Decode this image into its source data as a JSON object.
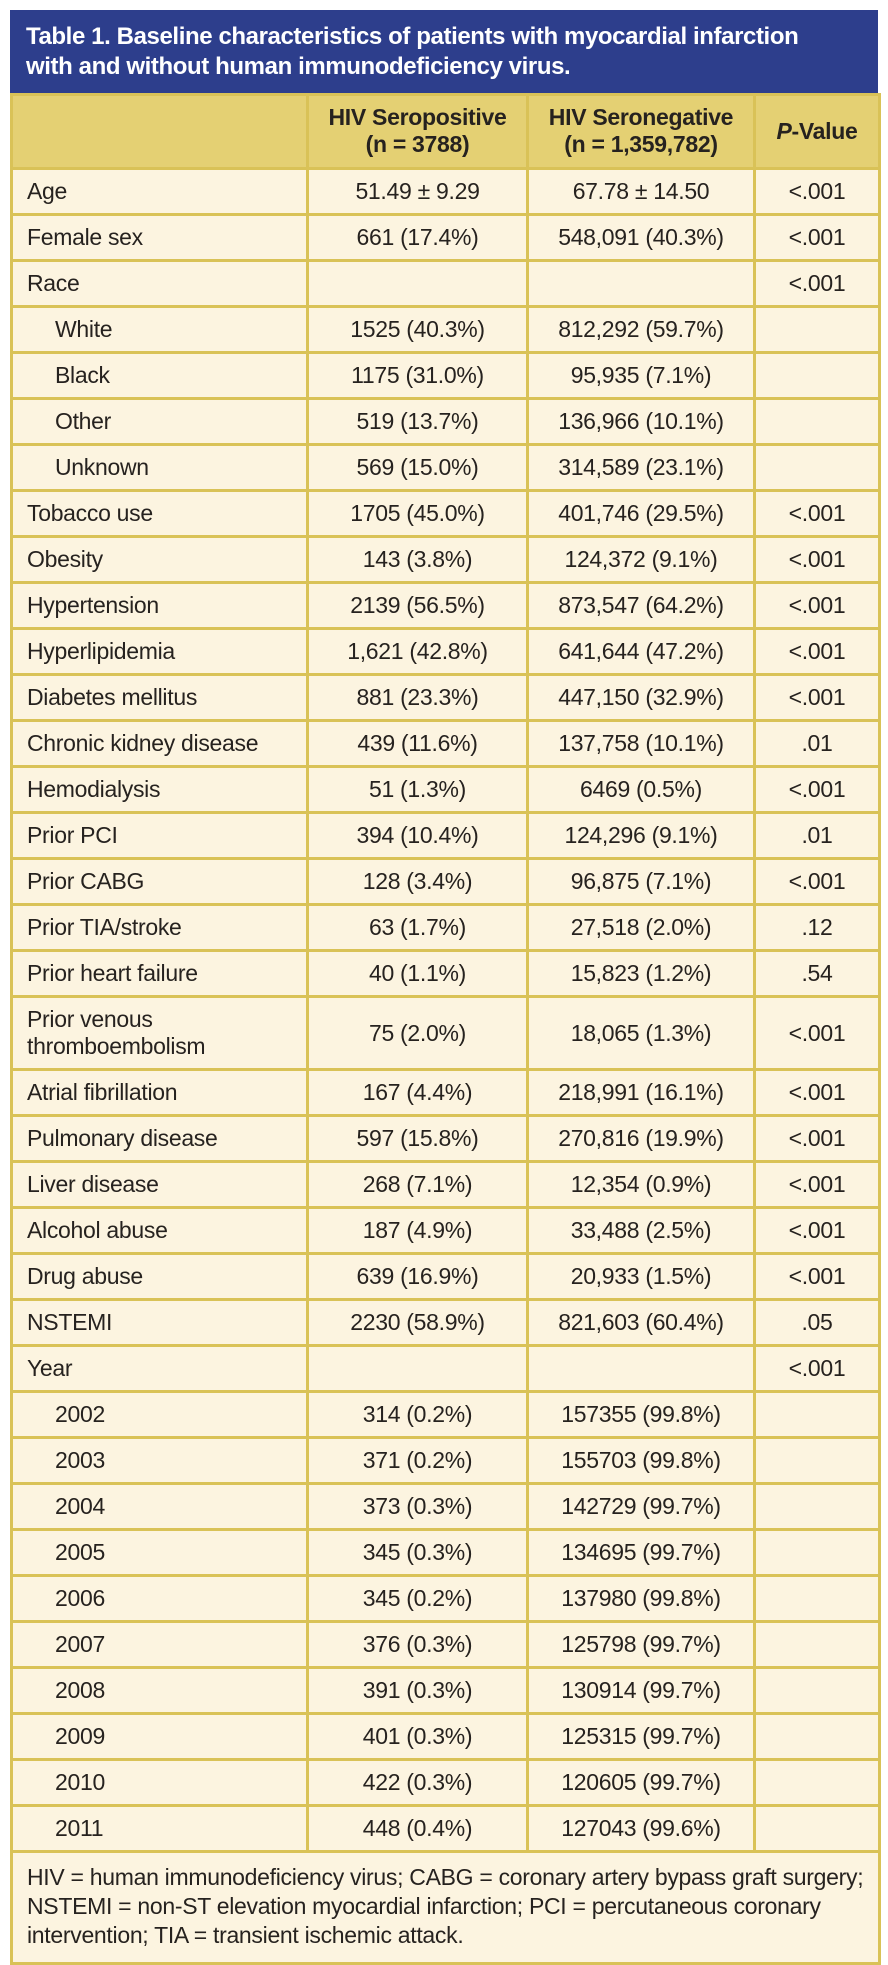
{
  "page": {
    "title_line1": "Table 1. Baseline characteristics of patients with myocardial infarction",
    "title_line2": "with and without human immunodeficiency virus."
  },
  "colors": {
    "title_bar_bg": "#2d3e8c",
    "title_text": "#ffffff",
    "header_band_bg": "#e4d073",
    "cell_bg": "#fcf4e0",
    "border": "#d9c257",
    "body_text": "#26221f"
  },
  "table": {
    "columns": {
      "label_header": "",
      "seropositive": {
        "label": "HIV Seropositive",
        "sub": "(n = 3788)"
      },
      "seronegative": {
        "label": "HIV Seronegative",
        "sub": "(n = 1,359,782)"
      },
      "pvalue": {
        "italic": "P",
        "rest": "-Value"
      }
    },
    "rows": [
      {
        "label": "Age",
        "indent": false,
        "seropositive": "51.49 ± 9.29",
        "seronegative": "67.78 ± 14.50",
        "p": "<.001"
      },
      {
        "label": "Female sex",
        "indent": false,
        "seropositive": "661 (17.4%)",
        "seronegative": "548,091 (40.3%)",
        "p": "<.001"
      },
      {
        "label": "Race",
        "indent": false,
        "seropositive": "",
        "seronegative": "",
        "p": "<.001"
      },
      {
        "label": "White",
        "indent": true,
        "seropositive": "1525 (40.3%)",
        "seronegative": "812,292 (59.7%)",
        "p": ""
      },
      {
        "label": "Black",
        "indent": true,
        "seropositive": "1175 (31.0%)",
        "seronegative": "95,935 (7.1%)",
        "p": ""
      },
      {
        "label": "Other",
        "indent": true,
        "seropositive": "519 (13.7%)",
        "seronegative": "136,966 (10.1%)",
        "p": ""
      },
      {
        "label": "Unknown",
        "indent": true,
        "seropositive": "569 (15.0%)",
        "seronegative": "314,589 (23.1%)",
        "p": ""
      },
      {
        "label": "Tobacco use",
        "indent": false,
        "seropositive": "1705 (45.0%)",
        "seronegative": "401,746 (29.5%)",
        "p": "<.001"
      },
      {
        "label": "Obesity",
        "indent": false,
        "seropositive": "143 (3.8%)",
        "seronegative": "124,372 (9.1%)",
        "p": "<.001"
      },
      {
        "label": "Hypertension",
        "indent": false,
        "seropositive": "2139 (56.5%)",
        "seronegative": "873,547 (64.2%)",
        "p": "<.001"
      },
      {
        "label": "Hyperlipidemia",
        "indent": false,
        "seropositive": "1,621 (42.8%)",
        "seronegative": "641,644 (47.2%)",
        "p": "<.001"
      },
      {
        "label": "Diabetes mellitus",
        "indent": false,
        "seropositive": "881 (23.3%)",
        "seronegative": "447,150 (32.9%)",
        "p": "<.001"
      },
      {
        "label": "Chronic kidney disease",
        "indent": false,
        "seropositive": "439 (11.6%)",
        "seronegative": "137,758 (10.1%)",
        "p": ".01"
      },
      {
        "label": "Hemodialysis",
        "indent": false,
        "seropositive": "51 (1.3%)",
        "seronegative": "6469 (0.5%)",
        "p": "<.001"
      },
      {
        "label": "Prior PCI",
        "indent": false,
        "seropositive": "394 (10.4%)",
        "seronegative": "124,296 (9.1%)",
        "p": ".01"
      },
      {
        "label": "Prior CABG",
        "indent": false,
        "seropositive": "128 (3.4%)",
        "seronegative": "96,875 (7.1%)",
        "p": "<.001"
      },
      {
        "label": "Prior TIA/stroke",
        "indent": false,
        "seropositive": "63 (1.7%)",
        "seronegative": "27,518 (2.0%)",
        "p": ".12"
      },
      {
        "label": "Prior heart failure",
        "indent": false,
        "seropositive": "40 (1.1%)",
        "seronegative": "15,823 (1.2%)",
        "p": ".54"
      },
      {
        "label": "Prior venous thromboembolism",
        "indent": false,
        "seropositive": "75 (2.0%)",
        "seronegative": "18,065 (1.3%)",
        "p": "<.001"
      },
      {
        "label": "Atrial fibrillation",
        "indent": false,
        "seropositive": "167 (4.4%)",
        "seronegative": "218,991 (16.1%)",
        "p": "<.001"
      },
      {
        "label": "Pulmonary disease",
        "indent": false,
        "seropositive": "597 (15.8%)",
        "seronegative": "270,816 (19.9%)",
        "p": "<.001"
      },
      {
        "label": "Liver disease",
        "indent": false,
        "seropositive": "268 (7.1%)",
        "seronegative": "12,354 (0.9%)",
        "p": "<.001"
      },
      {
        "label": "Alcohol abuse",
        "indent": false,
        "seropositive": "187 (4.9%)",
        "seronegative": "33,488 (2.5%)",
        "p": "<.001"
      },
      {
        "label": "Drug abuse",
        "indent": false,
        "seropositive": "639 (16.9%)",
        "seronegative": "20,933 (1.5%)",
        "p": "<.001"
      },
      {
        "label": "NSTEMI",
        "indent": false,
        "seropositive": "2230 (58.9%)",
        "seronegative": "821,603 (60.4%)",
        "p": ".05"
      },
      {
        "label": "Year",
        "indent": false,
        "seropositive": "",
        "seronegative": "",
        "p": "<.001"
      },
      {
        "label": "2002",
        "indent": true,
        "seropositive": "314 (0.2%)",
        "seronegative": "157355 (99.8%)",
        "p": ""
      },
      {
        "label": "2003",
        "indent": true,
        "seropositive": "371 (0.2%)",
        "seronegative": "155703 (99.8%)",
        "p": ""
      },
      {
        "label": "2004",
        "indent": true,
        "seropositive": "373 (0.3%)",
        "seronegative": "142729 (99.7%)",
        "p": ""
      },
      {
        "label": "2005",
        "indent": true,
        "seropositive": "345 (0.3%)",
        "seronegative": "134695 (99.7%)",
        "p": ""
      },
      {
        "label": "2006",
        "indent": true,
        "seropositive": "345 (0.2%)",
        "seronegative": "137980 (99.8%)",
        "p": ""
      },
      {
        "label": "2007",
        "indent": true,
        "seropositive": "376 (0.3%)",
        "seronegative": "125798 (99.7%)",
        "p": ""
      },
      {
        "label": "2008",
        "indent": true,
        "seropositive": "391 (0.3%)",
        "seronegative": "130914 (99.7%)",
        "p": ""
      },
      {
        "label": "2009",
        "indent": true,
        "seropositive": "401 (0.3%)",
        "seronegative": "125315 (99.7%)",
        "p": ""
      },
      {
        "label": "2010",
        "indent": true,
        "seropositive": "422 (0.3%)",
        "seronegative": "120605 (99.7%)",
        "p": ""
      },
      {
        "label": "2011",
        "indent": true,
        "seropositive": "448 (0.4%)",
        "seronegative": "127043 (99.6%)",
        "p": ""
      }
    ],
    "footnote": "HIV = human immunodeficiency virus; CABG = coronary artery bypass graft surgery; NSTEMI = non-ST elevation myocardial infarction; PCI = percutaneous coronary intervention; TIA = transient ischemic attack."
  }
}
